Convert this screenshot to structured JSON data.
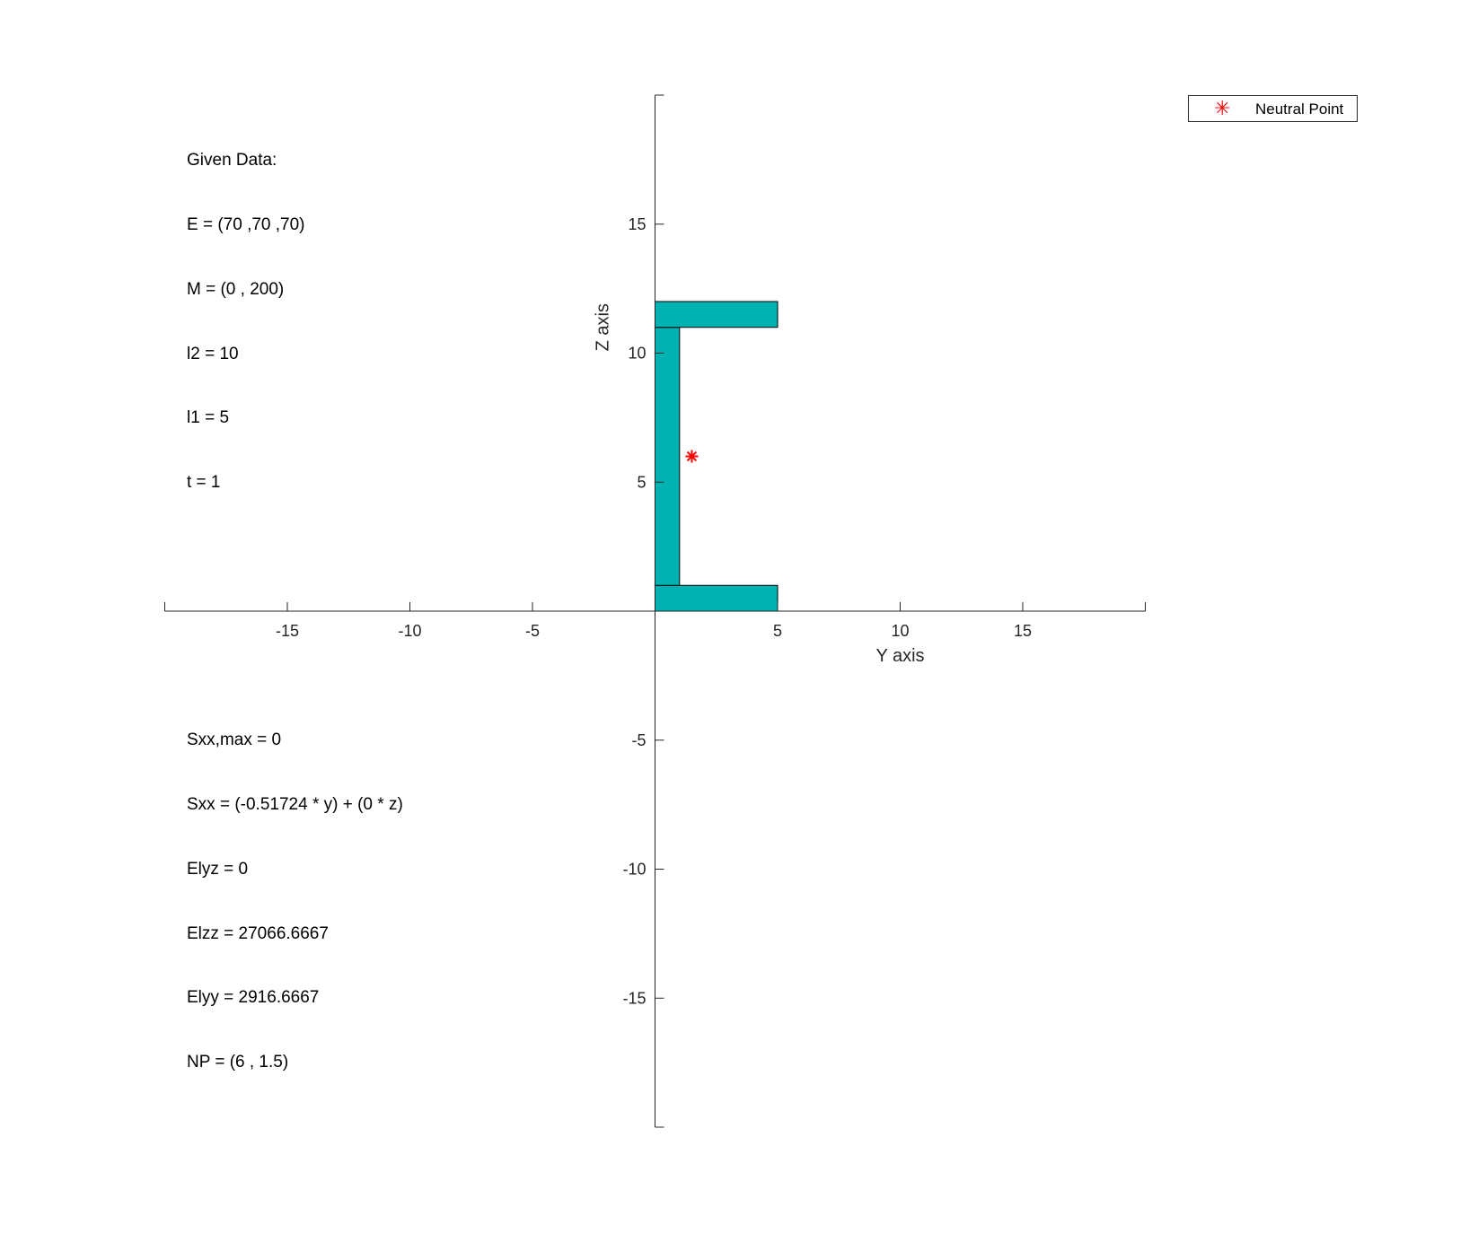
{
  "chart_data": {
    "type": "scatter",
    "xlabel": "Y axis",
    "ylabel": "Z axis",
    "xlim": [
      -20,
      20
    ],
    "ylim": [
      -20,
      20
    ],
    "xticks": [
      -15,
      -10,
      -5,
      5,
      10,
      15
    ],
    "yticks": [
      -15,
      -10,
      -5,
      5,
      10,
      15
    ],
    "legend_position": "top-right",
    "section_color": "#00b2b2",
    "section": [
      {
        "name": "bottom-flange",
        "y": [
          0,
          5
        ],
        "z": [
          0,
          1
        ]
      },
      {
        "name": "web",
        "y": [
          0,
          1
        ],
        "z": [
          1,
          11
        ]
      },
      {
        "name": "top-flange",
        "y": [
          0,
          5
        ],
        "z": [
          11,
          12
        ]
      }
    ],
    "series": [
      {
        "name": "Neutral Point",
        "marker": "*",
        "color": "#ff0000",
        "y": [
          1.5
        ],
        "z": [
          6
        ]
      }
    ]
  },
  "legend": {
    "label": "Neutral Point",
    "marker": "✳"
  },
  "given": {
    "title": "Given Data:",
    "E": "E = (70 ,70 ,70)",
    "M": "M = (0 , 200)",
    "l2": "l2 = 10",
    "l1": "l1 = 5",
    "t": "t = 1"
  },
  "results": {
    "sxx_max": "Sxx,max = 0",
    "sxx": "Sxx = (-0.51724 * y) + (0 * z)",
    "elyz": "Elyz = 0",
    "elzz": "Elzz = 27066.6667",
    "elyy": "Elyy = 2916.6667",
    "np": "NP = (6 , 1.5)"
  }
}
